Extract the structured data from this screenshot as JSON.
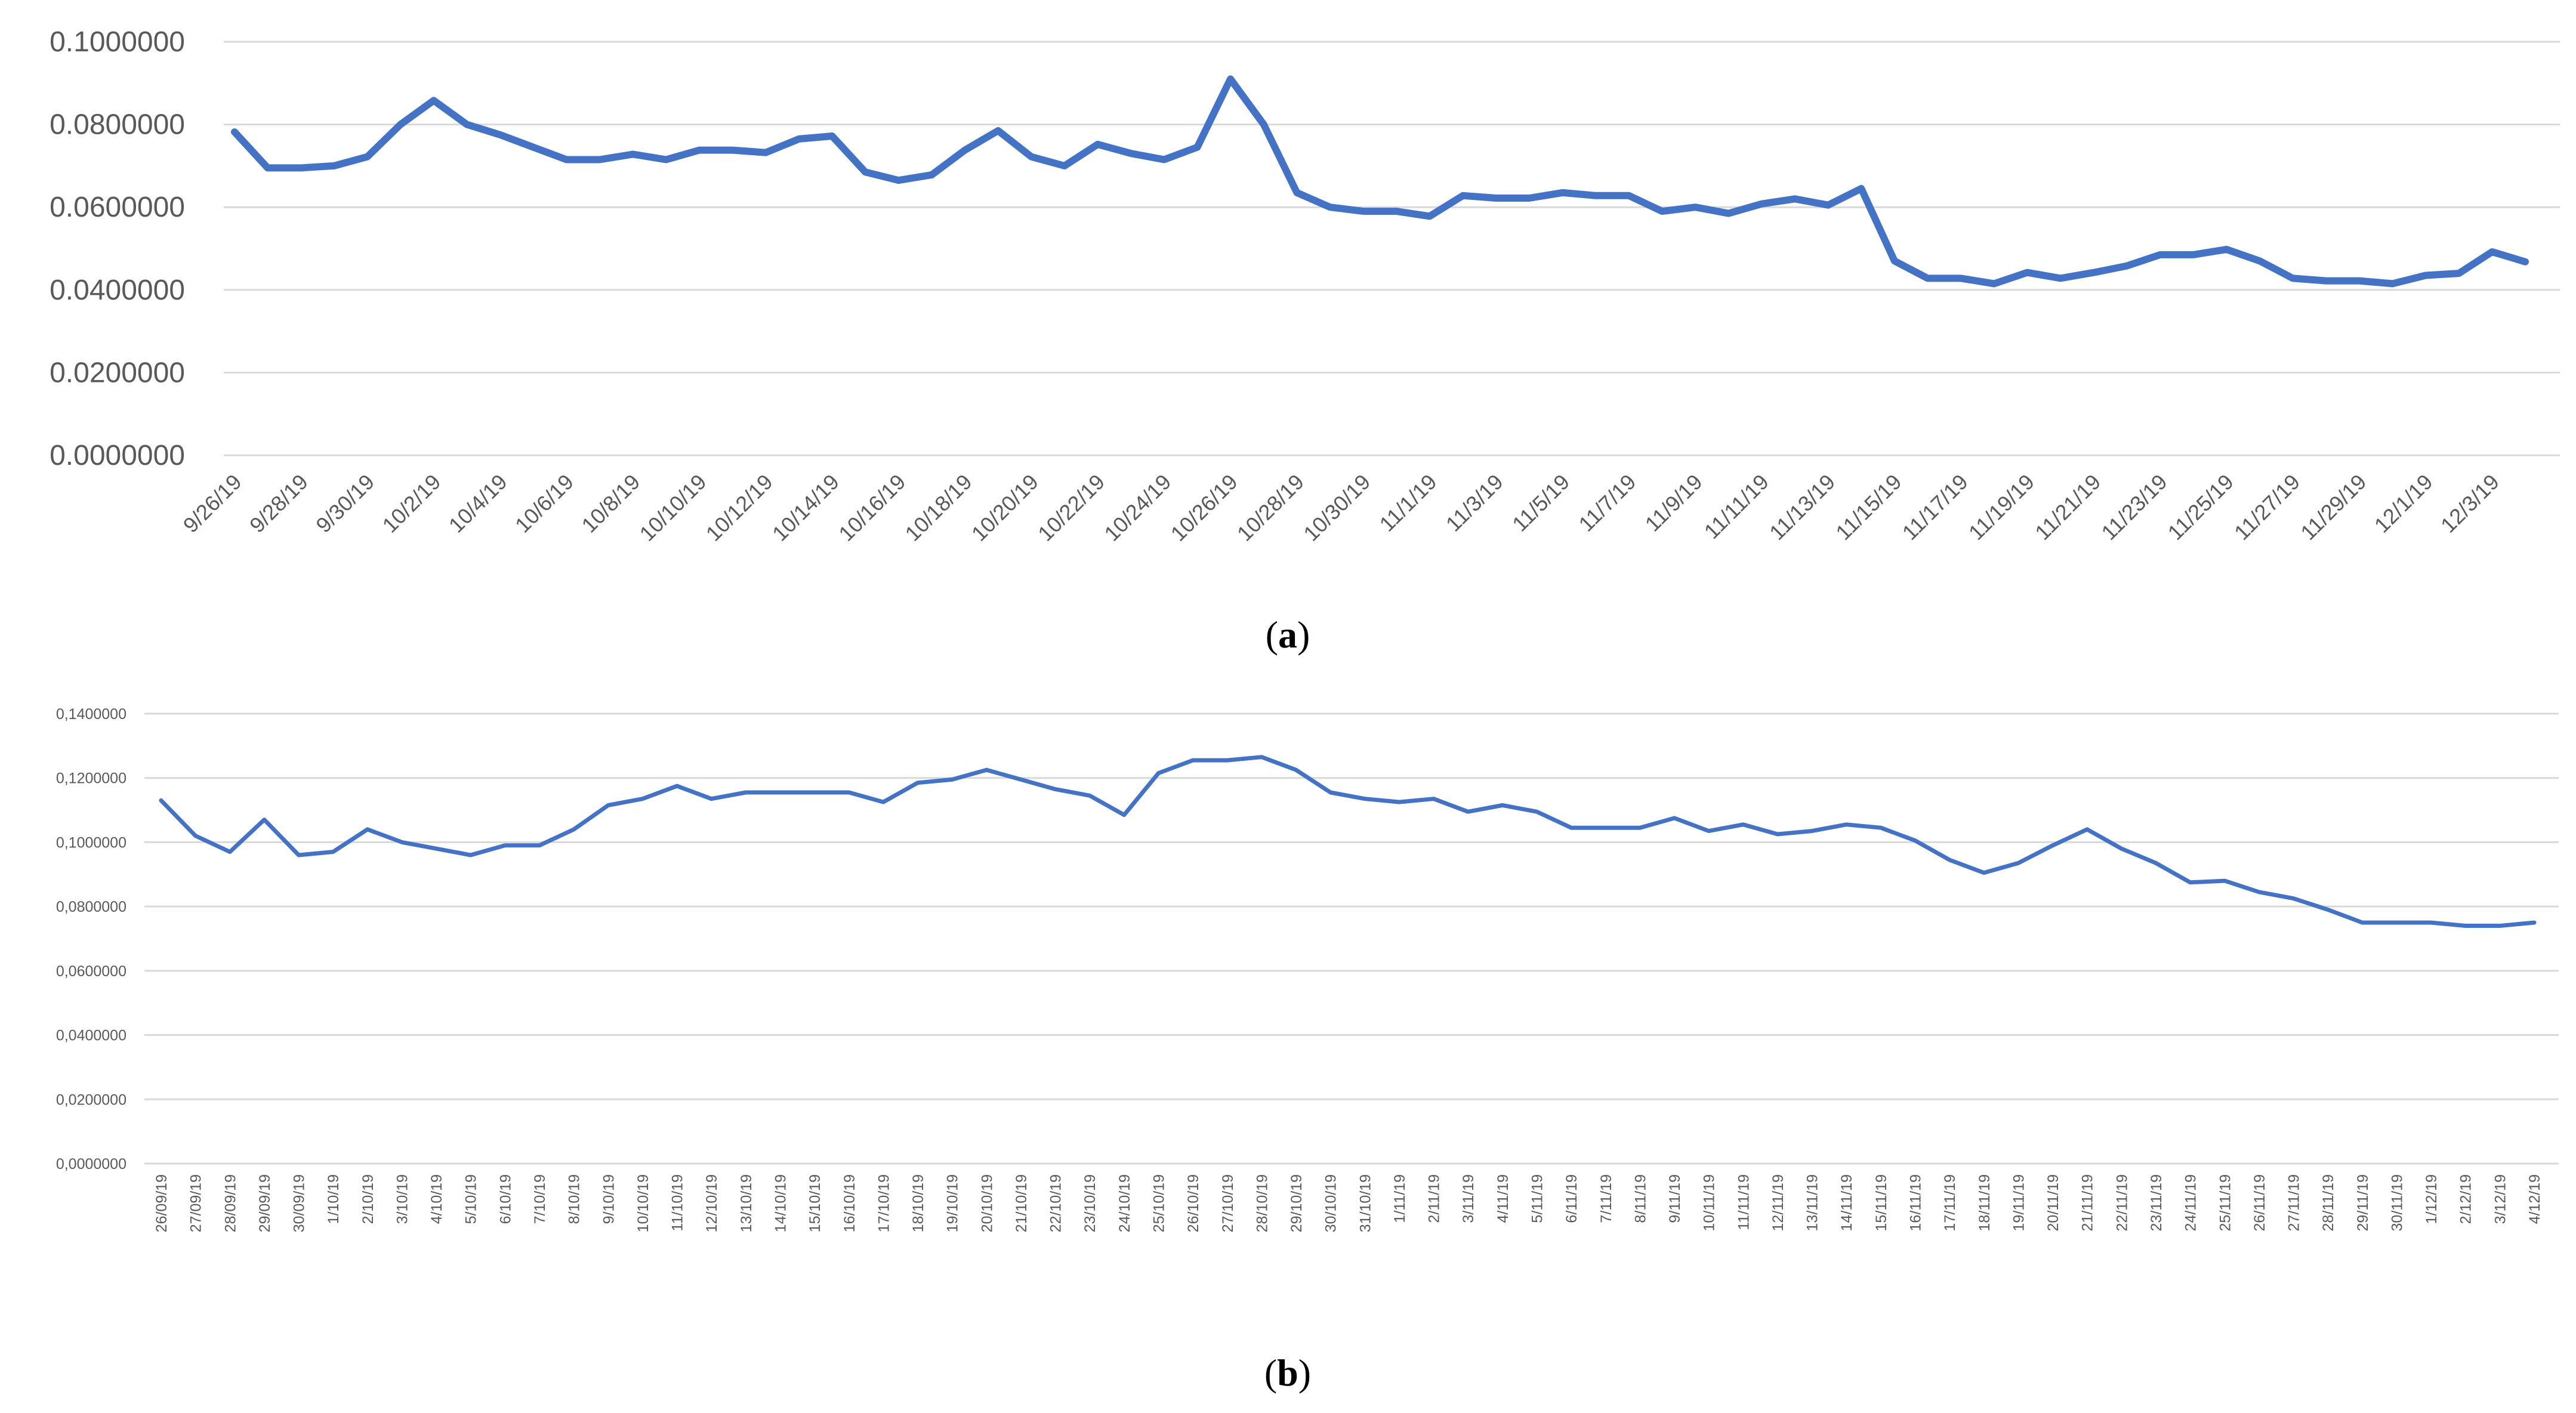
{
  "chart_data": [
    {
      "panel_label": "a",
      "type": "line",
      "color": "#4472c4",
      "grid": true,
      "ylim": [
        0,
        0.1
      ],
      "y_ticks": [
        "0.0000000",
        "0.0200000",
        "0.0400000",
        "0.0600000",
        "0.0800000",
        "0.1000000"
      ],
      "x_tick_labels": [
        "9/26/19",
        "9/28/19",
        "9/30/19",
        "10/2/19",
        "10/4/19",
        "10/6/19",
        "10/8/19",
        "10/10/19",
        "10/12/19",
        "10/14/19",
        "10/16/19",
        "10/18/19",
        "10/20/19",
        "10/22/19",
        "10/24/19",
        "10/26/19",
        "10/28/19",
        "10/30/19",
        "11/1/19",
        "11/3/19",
        "11/5/19",
        "11/7/19",
        "11/9/19",
        "11/11/19",
        "11/13/19",
        "11/15/19",
        "11/17/19",
        "11/19/19",
        "11/21/19",
        "11/23/19",
        "11/25/19",
        "11/27/19",
        "11/29/19",
        "12/1/19",
        "12/3/19"
      ],
      "x": [
        "9/26/19",
        "9/27/19",
        "9/28/19",
        "9/29/19",
        "9/30/19",
        "10/1/19",
        "10/2/19",
        "10/3/19",
        "10/4/19",
        "10/5/19",
        "10/6/19",
        "10/7/19",
        "10/8/19",
        "10/9/19",
        "10/10/19",
        "10/11/19",
        "10/12/19",
        "10/13/19",
        "10/14/19",
        "10/15/19",
        "10/16/19",
        "10/17/19",
        "10/18/19",
        "10/19/19",
        "10/20/19",
        "10/21/19",
        "10/22/19",
        "10/23/19",
        "10/24/19",
        "10/25/19",
        "10/26/19",
        "10/27/19",
        "10/28/19",
        "10/29/19",
        "10/30/19",
        "10/31/19",
        "11/1/19",
        "11/2/19",
        "11/3/19",
        "11/4/19",
        "11/5/19",
        "11/6/19",
        "11/7/19",
        "11/8/19",
        "11/9/19",
        "11/10/19",
        "11/11/19",
        "11/12/19",
        "11/13/19",
        "11/14/19",
        "11/15/19",
        "11/16/19",
        "11/17/19",
        "11/18/19",
        "11/19/19",
        "11/20/19",
        "11/21/19",
        "11/22/19",
        "11/23/19",
        "11/24/19",
        "11/25/19",
        "11/26/19",
        "11/27/19",
        "11/28/19",
        "11/29/19",
        "11/30/19",
        "12/1/19",
        "12/2/19",
        "12/3/19",
        "12/4/19"
      ],
      "values": [
        0.0782,
        0.0695,
        0.0695,
        0.07,
        0.0722,
        0.08,
        0.0858,
        0.08,
        0.0775,
        0.0745,
        0.0715,
        0.0715,
        0.0728,
        0.0715,
        0.0738,
        0.0738,
        0.0732,
        0.0765,
        0.0772,
        0.0685,
        0.0665,
        0.0678,
        0.0738,
        0.0785,
        0.0722,
        0.07,
        0.0752,
        0.073,
        0.0715,
        0.0745,
        0.091,
        0.08,
        0.0635,
        0.06,
        0.059,
        0.059,
        0.0578,
        0.0628,
        0.0622,
        0.0622,
        0.0635,
        0.0628,
        0.0628,
        0.059,
        0.06,
        0.0585,
        0.0608,
        0.062,
        0.0605,
        0.0645,
        0.047,
        0.0428,
        0.0428,
        0.0415,
        0.0442,
        0.0428,
        0.0442,
        0.0458,
        0.0485,
        0.0485,
        0.0498,
        0.047,
        0.0428,
        0.0422,
        0.0422,
        0.0415,
        0.0435,
        0.044,
        0.0492,
        0.0468
      ]
    },
    {
      "panel_label": "b",
      "type": "line",
      "color": "#4472c4",
      "grid": true,
      "ylim": [
        0,
        0.14
      ],
      "y_ticks": [
        "0,0000000",
        "0,0200000",
        "0,0400000",
        "0,0600000",
        "0,0800000",
        "0,1000000",
        "0,1200000",
        "0,1400000"
      ],
      "x": [
        "26/09/19",
        "27/09/19",
        "28/09/19",
        "29/09/19",
        "30/09/19",
        "1/10/19",
        "2/10/19",
        "3/10/19",
        "4/10/19",
        "5/10/19",
        "6/10/19",
        "7/10/19",
        "8/10/19",
        "9/10/19",
        "10/10/19",
        "11/10/19",
        "12/10/19",
        "13/10/19",
        "14/10/19",
        "15/10/19",
        "16/10/19",
        "17/10/19",
        "18/10/19",
        "19/10/19",
        "20/10/19",
        "21/10/19",
        "22/10/19",
        "23/10/19",
        "24/10/19",
        "25/10/19",
        "26/10/19",
        "27/10/19",
        "28/10/19",
        "29/10/19",
        "30/10/19",
        "31/10/19",
        "1/11/19",
        "2/11/19",
        "3/11/19",
        "4/11/19",
        "5/11/19",
        "6/11/19",
        "7/11/19",
        "8/11/19",
        "9/11/19",
        "10/11/19",
        "11/11/19",
        "12/11/19",
        "13/11/19",
        "14/11/19",
        "15/11/19",
        "16/11/19",
        "17/11/19",
        "18/11/19",
        "19/11/19",
        "20/11/19",
        "21/11/19",
        "22/11/19",
        "23/11/19",
        "24/11/19",
        "25/11/19",
        "26/11/19",
        "27/11/19",
        "28/11/19",
        "29/11/19",
        "30/11/19",
        "1/12/19",
        "2/12/19",
        "3/12/19",
        "4/12/19"
      ],
      "values": [
        0.113,
        0.102,
        0.097,
        0.107,
        0.096,
        0.097,
        0.104,
        0.1,
        0.098,
        0.096,
        0.099,
        0.099,
        0.104,
        0.1115,
        0.1135,
        0.1175,
        0.1135,
        0.1155,
        0.1155,
        0.1155,
        0.1155,
        0.1125,
        0.1185,
        0.1195,
        0.1225,
        0.1195,
        0.1165,
        0.1145,
        0.1085,
        0.1215,
        0.1255,
        0.1255,
        0.1265,
        0.1225,
        0.1155,
        0.1135,
        0.1125,
        0.1135,
        0.1095,
        0.1115,
        0.1095,
        0.1045,
        0.1045,
        0.1045,
        0.1075,
        0.1035,
        0.1055,
        0.1025,
        0.1035,
        0.1055,
        0.1045,
        0.1005,
        0.0945,
        0.0905,
        0.0935,
        0.099,
        0.104,
        0.098,
        0.0935,
        0.0875,
        0.088,
        0.0845,
        0.0825,
        0.079,
        0.075,
        0.075,
        0.075,
        0.074,
        0.074,
        0.075
      ]
    }
  ]
}
